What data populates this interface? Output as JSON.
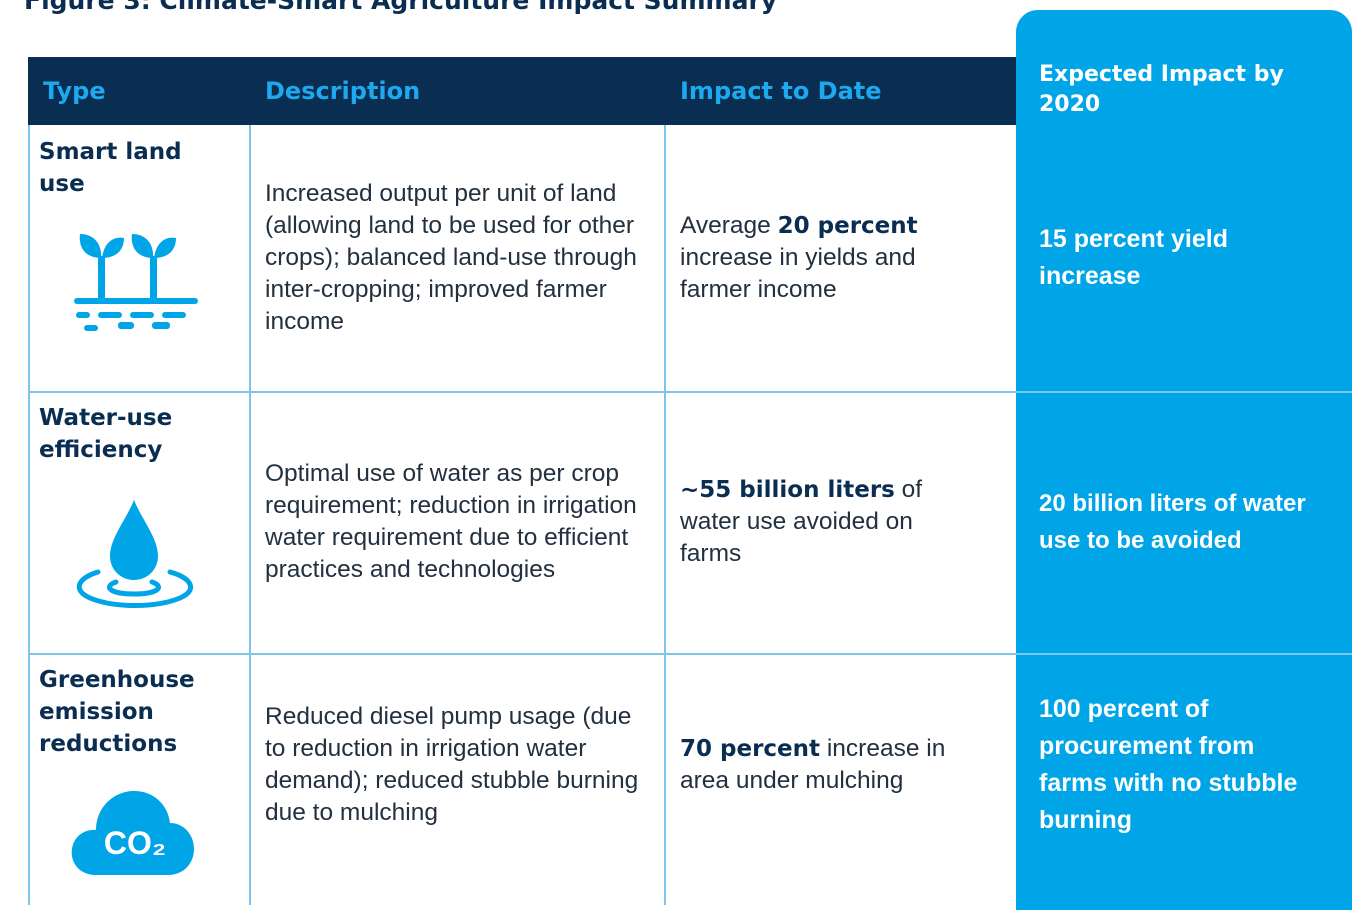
{
  "title": "Figure 3: Climate-Smart Agriculture Impact Summary",
  "table": {
    "header": [
      "Type",
      "Description",
      "Impact to Date",
      "Expected Impact by 2020"
    ],
    "rows": [
      {
        "type": "Smart land use",
        "description": "Increased output per unit of land (allowing land to be used for other crops); balanced land-use through inter-cropping; improved farmer income",
        "impact": [
          {
            "text": "Average ",
            "bold": false
          },
          {
            "text": "20 percent",
            "bold": true
          },
          {
            "text": " increase in yields and farmer income",
            "bold": false
          }
        ],
        "expected": "15 percent yield increase"
      },
      {
        "type": "Water-use efficiency",
        "description": "Optimal use of water as per crop requirement; reduction in irrigation water requirement due to efficient practices and technologies",
        "impact": [
          {
            "text": "~55 billion liters",
            "bold": true
          },
          {
            "text": " of water use avoided on farms",
            "bold": false
          }
        ],
        "expected": "20 billion liters of water use to be avoided"
      },
      {
        "type": "Greenhouse emission reductions",
        "icon_label": "CO₂",
        "description": "Reduced diesel pump usage (due to reduction in irrigation water demand); reduced stubble burning due to mulching",
        "impact": [
          {
            "text": "70 percent",
            "bold": true
          },
          {
            "text": " increase in area under mulching",
            "bold": false
          }
        ],
        "expected": "100 percent of procurement from farms with no stubble burning"
      }
    ]
  }
}
